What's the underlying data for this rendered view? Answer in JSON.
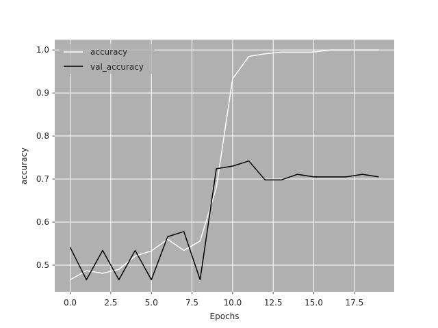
{
  "chart_data": {
    "type": "line",
    "xlabel": "Epochs",
    "ylabel": "accuracy",
    "xlim": [
      -0.95,
      19.95
    ],
    "ylim": [
      0.438,
      1.024
    ],
    "x_ticks": [
      0.0,
      2.5,
      5.0,
      7.5,
      10.0,
      12.5,
      15.0,
      17.5
    ],
    "x_tick_labels": [
      "0.0",
      "2.5",
      "5.0",
      "7.5",
      "10.0",
      "12.5",
      "15.0",
      "17.5"
    ],
    "y_ticks": [
      0.5,
      0.6,
      0.7,
      0.8,
      0.9,
      1.0
    ],
    "y_tick_labels": [
      "0.5",
      "0.6",
      "0.7",
      "0.8",
      "0.9",
      "1.0"
    ],
    "grid": true,
    "legend_position": "top-left",
    "background_color": "#b0b0b0",
    "grid_color": "#ffffff",
    "x": [
      0,
      1,
      2,
      3,
      4,
      5,
      6,
      7,
      8,
      9,
      10,
      11,
      12,
      13,
      14,
      15,
      16,
      17,
      18,
      19
    ],
    "series": [
      {
        "name": "accuracy",
        "color": "#ffffff",
        "values": [
          0.466,
          0.487,
          0.481,
          0.49,
          0.521,
          0.533,
          0.56,
          0.534,
          0.556,
          0.68,
          0.933,
          0.985,
          0.991,
          0.995,
          0.995,
          0.995,
          1.0,
          1.0,
          1.0,
          1.0
        ]
      },
      {
        "name": "val_accuracy",
        "color": "#000000",
        "values": [
          0.541,
          0.466,
          0.534,
          0.466,
          0.534,
          0.466,
          0.566,
          0.578,
          0.466,
          0.724,
          0.73,
          0.742,
          0.698,
          0.698,
          0.711,
          0.705,
          0.705,
          0.705,
          0.711,
          0.705
        ]
      }
    ]
  }
}
